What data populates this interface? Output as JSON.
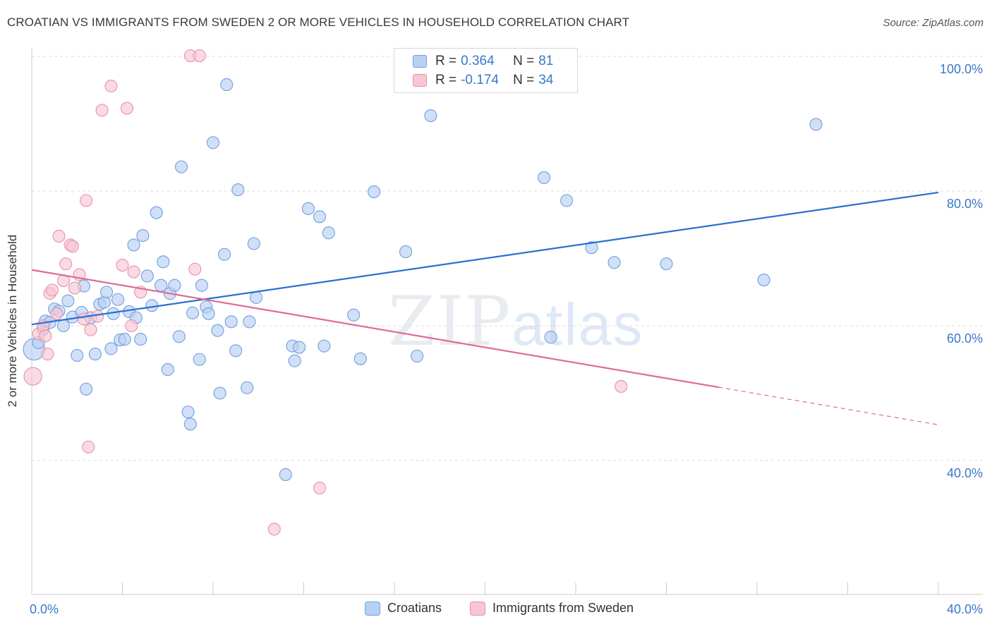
{
  "chart_data": {
    "type": "scatter",
    "title": "CROATIAN VS IMMIGRANTS FROM SWEDEN 2 OR MORE VEHICLES IN HOUSEHOLD CORRELATION CHART",
    "source": "Source: ZipAtlas.com",
    "xlabel": "",
    "ylabel": "2 or more Vehicles in Household",
    "xlim": [
      0,
      40
    ],
    "ylim": [
      20,
      103
    ],
    "x_tick_labels": [
      "0.0%",
      "40.0%"
    ],
    "y_ticks": [
      40,
      60,
      80,
      100
    ],
    "y_tick_labels": [
      "40.0%",
      "60.0%",
      "80.0%",
      "100.0%"
    ],
    "watermark": "ZIPatlas",
    "watermark_parts": [
      "ZIP",
      "atlas"
    ],
    "colors": {
      "croatians": "#6f9fe0",
      "croatians_fill": "#b8d0f2",
      "croatians_line": "#2a6fd1",
      "sweden": "#e890ab",
      "sweden_fill": "#f7c6d4",
      "sweden_line": "#e06b95"
    },
    "legend": {
      "rows": [
        {
          "r_label": "R =",
          "r_value": "0.364",
          "n_label": "N =",
          "n_value": "81"
        },
        {
          "r_label": "R =",
          "r_value": "-0.174",
          "n_label": "N =",
          "n_value": "34"
        }
      ]
    },
    "series": [
      {
        "name": "Croatians",
        "trend": {
          "x": [
            0,
            40
          ],
          "y": [
            60.2,
            79.8
          ],
          "dashed_from": null
        },
        "points": [
          [
            0.1,
            56.5
          ],
          [
            0.3,
            57.5
          ],
          [
            0.5,
            59.5
          ],
          [
            0.6,
            60.7
          ],
          [
            0.8,
            60.5
          ],
          [
            1.0,
            62.5
          ],
          [
            1.2,
            62.2
          ],
          [
            1.4,
            60.0
          ],
          [
            1.6,
            63.7
          ],
          [
            1.8,
            61.3
          ],
          [
            2.0,
            55.6
          ],
          [
            2.2,
            62.0
          ],
          [
            2.3,
            65.9
          ],
          [
            2.4,
            50.6
          ],
          [
            2.6,
            61.2
          ],
          [
            2.8,
            55.8
          ],
          [
            3.0,
            63.2
          ],
          [
            3.2,
            63.5
          ],
          [
            3.3,
            65.0
          ],
          [
            3.5,
            56.6
          ],
          [
            3.6,
            61.8
          ],
          [
            3.8,
            63.9
          ],
          [
            3.9,
            57.9
          ],
          [
            4.1,
            58.0
          ],
          [
            4.3,
            62.1
          ],
          [
            4.5,
            72.0
          ],
          [
            4.6,
            61.2
          ],
          [
            4.8,
            58.0
          ],
          [
            4.9,
            73.4
          ],
          [
            5.1,
            67.4
          ],
          [
            5.3,
            63.0
          ],
          [
            5.5,
            76.8
          ],
          [
            5.7,
            66.0
          ],
          [
            5.8,
            69.5
          ],
          [
            6.0,
            53.5
          ],
          [
            6.1,
            64.8
          ],
          [
            6.3,
            66.0
          ],
          [
            6.5,
            58.4
          ],
          [
            6.6,
            83.6
          ],
          [
            6.9,
            47.2
          ],
          [
            7.0,
            45.4
          ],
          [
            7.1,
            61.9
          ],
          [
            7.4,
            55.0
          ],
          [
            7.5,
            66.0
          ],
          [
            7.7,
            62.8
          ],
          [
            7.8,
            61.8
          ],
          [
            8.0,
            87.2
          ],
          [
            8.2,
            59.3
          ],
          [
            8.3,
            50.0
          ],
          [
            8.5,
            70.6
          ],
          [
            8.6,
            95.8
          ],
          [
            8.8,
            60.6
          ],
          [
            9.0,
            56.3
          ],
          [
            9.1,
            80.2
          ],
          [
            9.5,
            50.8
          ],
          [
            9.6,
            60.6
          ],
          [
            9.8,
            72.2
          ],
          [
            9.9,
            64.2
          ],
          [
            11.2,
            37.9
          ],
          [
            11.5,
            57.0
          ],
          [
            11.6,
            54.8
          ],
          [
            11.8,
            56.8
          ],
          [
            12.2,
            77.4
          ],
          [
            12.7,
            76.2
          ],
          [
            12.9,
            57.0
          ],
          [
            13.1,
            73.8
          ],
          [
            14.2,
            61.6
          ],
          [
            14.5,
            55.1
          ],
          [
            15.1,
            79.9
          ],
          [
            16.5,
            71.0
          ],
          [
            17.0,
            55.5
          ],
          [
            17.6,
            91.2
          ],
          [
            22.6,
            82.0
          ],
          [
            22.9,
            58.3
          ],
          [
            23.6,
            78.6
          ],
          [
            24.7,
            71.6
          ],
          [
            25.7,
            69.4
          ],
          [
            28.0,
            69.2
          ],
          [
            32.3,
            66.8
          ],
          [
            34.6,
            89.9
          ]
        ],
        "sizes": [
          3.2,
          1,
          1,
          1,
          1,
          1,
          1,
          1,
          1,
          1,
          1,
          1,
          1,
          1,
          1,
          1,
          1,
          1,
          1,
          1,
          1,
          1,
          1,
          1,
          1,
          1,
          1,
          1,
          1,
          1,
          1,
          1,
          1,
          1,
          1,
          1,
          1,
          1,
          1,
          1,
          1,
          1,
          1,
          1,
          1,
          1,
          1,
          1,
          1,
          1,
          1,
          1,
          1,
          1,
          1,
          1,
          1,
          1,
          1,
          1,
          1,
          1,
          1,
          1,
          1,
          1,
          1,
          1,
          1,
          1,
          1,
          1,
          1,
          1,
          1,
          1,
          1,
          1,
          1,
          1
        ]
      },
      {
        "name": "Immigrants from Sweden",
        "trend": {
          "x": [
            0,
            40
          ],
          "y": [
            68.3,
            45.3
          ],
          "dashed_from": 30.3
        },
        "points": [
          [
            0.05,
            52.5
          ],
          [
            0.3,
            58.8
          ],
          [
            0.5,
            60.0
          ],
          [
            0.6,
            58.5
          ],
          [
            0.7,
            55.8
          ],
          [
            0.8,
            64.8
          ],
          [
            0.9,
            65.3
          ],
          [
            1.1,
            61.8
          ],
          [
            1.2,
            73.3
          ],
          [
            1.4,
            66.7
          ],
          [
            1.5,
            69.2
          ],
          [
            1.7,
            72.0
          ],
          [
            1.8,
            71.8
          ],
          [
            1.9,
            65.6
          ],
          [
            2.1,
            67.6
          ],
          [
            2.3,
            61.0
          ],
          [
            2.4,
            78.6
          ],
          [
            2.5,
            42.0
          ],
          [
            2.6,
            59.4
          ],
          [
            2.9,
            61.4
          ],
          [
            3.1,
            92.0
          ],
          [
            3.5,
            95.6
          ],
          [
            4.0,
            69.0
          ],
          [
            4.2,
            92.3
          ],
          [
            4.4,
            60.0
          ],
          [
            4.5,
            68.0
          ],
          [
            4.8,
            65.0
          ],
          [
            7.0,
            100.1
          ],
          [
            7.2,
            68.4
          ],
          [
            7.4,
            100.1
          ],
          [
            10.7,
            29.8
          ],
          [
            12.7,
            35.9
          ],
          [
            26.0,
            51.0
          ]
        ],
        "sizes": [
          2.2,
          1,
          1,
          1,
          1,
          1,
          1,
          1,
          1,
          1,
          1,
          1,
          1,
          1,
          1,
          1,
          1,
          1,
          1,
          1,
          1,
          1,
          1,
          1,
          1,
          1,
          1,
          1,
          1,
          1,
          1,
          1,
          1
        ]
      }
    ]
  },
  "legend_bottom": {
    "items": [
      "Croatians",
      "Immigrants from Sweden"
    ]
  }
}
